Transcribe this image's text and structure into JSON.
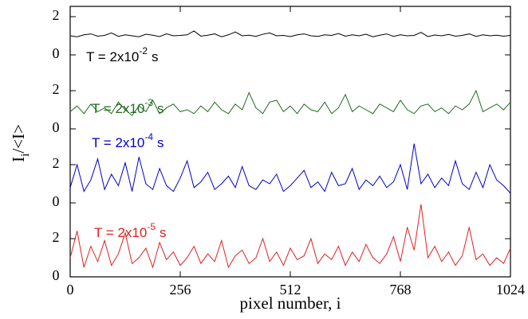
{
  "chart_data": [
    {
      "type": "line",
      "color": "#000000",
      "ylim": [
        0,
        2.54
      ],
      "yticks": [
        0,
        2
      ],
      "annotation": {
        "text": "T = 2x10",
        "exponent": "-2",
        "unit": "s"
      },
      "x": [
        0,
        16,
        32,
        48,
        64,
        80,
        96,
        112,
        128,
        144,
        160,
        176,
        192,
        208,
        224,
        240,
        256,
        272,
        288,
        304,
        320,
        336,
        352,
        368,
        384,
        400,
        416,
        432,
        448,
        464,
        480,
        496,
        512,
        528,
        544,
        560,
        576,
        592,
        608,
        624,
        640,
        656,
        672,
        688,
        704,
        720,
        736,
        752,
        768,
        784,
        800,
        816,
        832,
        848,
        864,
        880,
        896,
        912,
        928,
        944,
        960,
        976,
        992,
        1008,
        1024
      ],
      "values": [
        1.0,
        0.95,
        1.05,
        1.1,
        0.98,
        1.02,
        1.15,
        0.97,
        1.05,
        1.0,
        0.95,
        1.08,
        1.03,
        0.96,
        1.1,
        1.0,
        1.02,
        1.05,
        1.25,
        0.98,
        1.03,
        1.1,
        0.95,
        1.05,
        1.2,
        1.0,
        1.03,
        0.97,
        1.08,
        1.15,
        1.0,
        1.02,
        0.96,
        1.05,
        1.1,
        1.0,
        0.97,
        1.05,
        1.02,
        1.12,
        0.98,
        1.05,
        1.0,
        1.08,
        0.95,
        1.03,
        1.1,
        0.97,
        1.05,
        1.0,
        1.02,
        1.18,
        0.96,
        1.04,
        1.0,
        1.07,
        0.98,
        1.02,
        1.1,
        0.97,
        1.05,
        1.0,
        1.03,
        0.98,
        1.02
      ]
    },
    {
      "type": "line",
      "color": "#1e6b1e",
      "ylim": [
        0,
        3.875
      ],
      "yticks": [
        0,
        2
      ],
      "annotation": {
        "text": "T = 2x10",
        "exponent": "-3",
        "unit": "s"
      },
      "x": [
        0,
        16,
        32,
        48,
        64,
        80,
        96,
        112,
        128,
        144,
        160,
        176,
        192,
        208,
        224,
        240,
        256,
        272,
        288,
        304,
        320,
        336,
        352,
        368,
        384,
        400,
        416,
        432,
        448,
        464,
        480,
        496,
        512,
        528,
        544,
        560,
        576,
        592,
        608,
        624,
        640,
        656,
        672,
        688,
        704,
        720,
        736,
        752,
        768,
        784,
        800,
        816,
        832,
        848,
        864,
        880,
        896,
        912,
        928,
        944,
        960,
        976,
        992,
        1008,
        1024
      ],
      "values": [
        0.9,
        1.2,
        0.8,
        1.3,
        0.9,
        1.1,
        0.8,
        1.4,
        1.0,
        0.7,
        1.2,
        0.9,
        1.5,
        0.8,
        1.1,
        1.3,
        0.9,
        1.0,
        0.8,
        1.2,
        0.9,
        1.4,
        1.0,
        0.8,
        1.3,
        1.0,
        1.9,
        1.1,
        0.8,
        1.4,
        1.5,
        0.9,
        1.2,
        0.8,
        1.3,
        1.0,
        0.9,
        1.4,
        0.8,
        1.1,
        1.8,
        0.9,
        1.2,
        1.0,
        0.8,
        1.3,
        1.1,
        0.9,
        1.5,
        1.0,
        0.8,
        1.2,
        1.3,
        0.9,
        1.1,
        0.8,
        1.2,
        1.0,
        1.3,
        2.0,
        0.9,
        1.1,
        1.3,
        1.0,
        1.4
      ]
    },
    {
      "type": "line",
      "color": "#0000cc",
      "ylim": [
        0,
        3.875
      ],
      "yticks": [
        0,
        2
      ],
      "annotation": {
        "text": "T = 2x10",
        "exponent": "-4",
        "unit": "s"
      },
      "x": [
        0,
        16,
        32,
        48,
        64,
        80,
        96,
        112,
        128,
        144,
        160,
        176,
        192,
        208,
        224,
        240,
        256,
        272,
        288,
        304,
        320,
        336,
        352,
        368,
        384,
        400,
        416,
        432,
        448,
        464,
        480,
        496,
        512,
        528,
        544,
        560,
        576,
        592,
        608,
        624,
        640,
        656,
        672,
        688,
        704,
        720,
        736,
        752,
        768,
        784,
        800,
        816,
        832,
        848,
        864,
        880,
        896,
        912,
        928,
        944,
        960,
        976,
        992,
        1008,
        1024
      ],
      "values": [
        0.8,
        2.0,
        0.6,
        1.2,
        2.3,
        0.7,
        1.5,
        0.9,
        2.1,
        0.6,
        2.4,
        1.0,
        0.7,
        1.8,
        0.9,
        0.6,
        1.3,
        2.2,
        0.8,
        1.1,
        1.6,
        0.7,
        1.0,
        1.4,
        0.8,
        1.9,
        0.9,
        0.7,
        1.2,
        1.0,
        1.5,
        0.6,
        0.9,
        1.3,
        1.7,
        0.8,
        1.1,
        0.6,
        1.6,
        0.9,
        1.0,
        1.8,
        0.7,
        1.2,
        0.9,
        1.4,
        0.8,
        1.1,
        2.0,
        0.7,
        3.1,
        1.0,
        1.5,
        0.8,
        1.3,
        0.9,
        2.2,
        1.0,
        0.7,
        1.6,
        0.8,
        2.0,
        1.2,
        0.9,
        0.5
      ]
    },
    {
      "type": "line",
      "color": "#e02020",
      "ylim": [
        0,
        3.875
      ],
      "yticks": [
        0,
        2
      ],
      "annotation": {
        "text": "T = 2x10",
        "exponent": "-5",
        "unit": "s"
      },
      "xlim": [
        0,
        1024
      ],
      "xticks": [
        0,
        256,
        512,
        768,
        1024
      ],
      "xlabel": "pixel number, i",
      "ylabel": {
        "text": "I",
        "subscript": "i",
        "rest": "/<I>"
      },
      "x": [
        0,
        16,
        32,
        48,
        64,
        80,
        96,
        112,
        128,
        144,
        160,
        176,
        192,
        208,
        224,
        240,
        256,
        272,
        288,
        304,
        320,
        336,
        352,
        368,
        384,
        400,
        416,
        432,
        448,
        464,
        480,
        496,
        512,
        528,
        544,
        560,
        576,
        592,
        608,
        624,
        640,
        656,
        672,
        688,
        704,
        720,
        736,
        752,
        768,
        784,
        800,
        816,
        832,
        848,
        864,
        880,
        896,
        912,
        928,
        944,
        960,
        976,
        992,
        1008,
        1024
      ],
      "values": [
        1.0,
        2.4,
        0.5,
        1.6,
        0.8,
        1.9,
        0.6,
        1.2,
        2.3,
        0.7,
        1.0,
        1.5,
        0.5,
        1.8,
        0.9,
        1.3,
        0.6,
        1.0,
        1.6,
        0.7,
        1.2,
        0.8,
        1.9,
        0.5,
        1.1,
        1.4,
        0.7,
        1.0,
        2.0,
        0.8,
        1.3,
        0.6,
        1.5,
        0.9,
        1.1,
        2.0,
        0.7,
        1.2,
        0.9,
        1.6,
        0.6,
        1.3,
        0.8,
        1.7,
        1.0,
        0.7,
        1.2,
        2.1,
        0.8,
        2.6,
        1.4,
        3.8,
        1.0,
        1.6,
        0.8,
        1.3,
        0.6,
        1.1,
        2.6,
        0.9,
        1.2,
        0.6,
        1.0,
        0.7,
        1.5
      ]
    }
  ]
}
